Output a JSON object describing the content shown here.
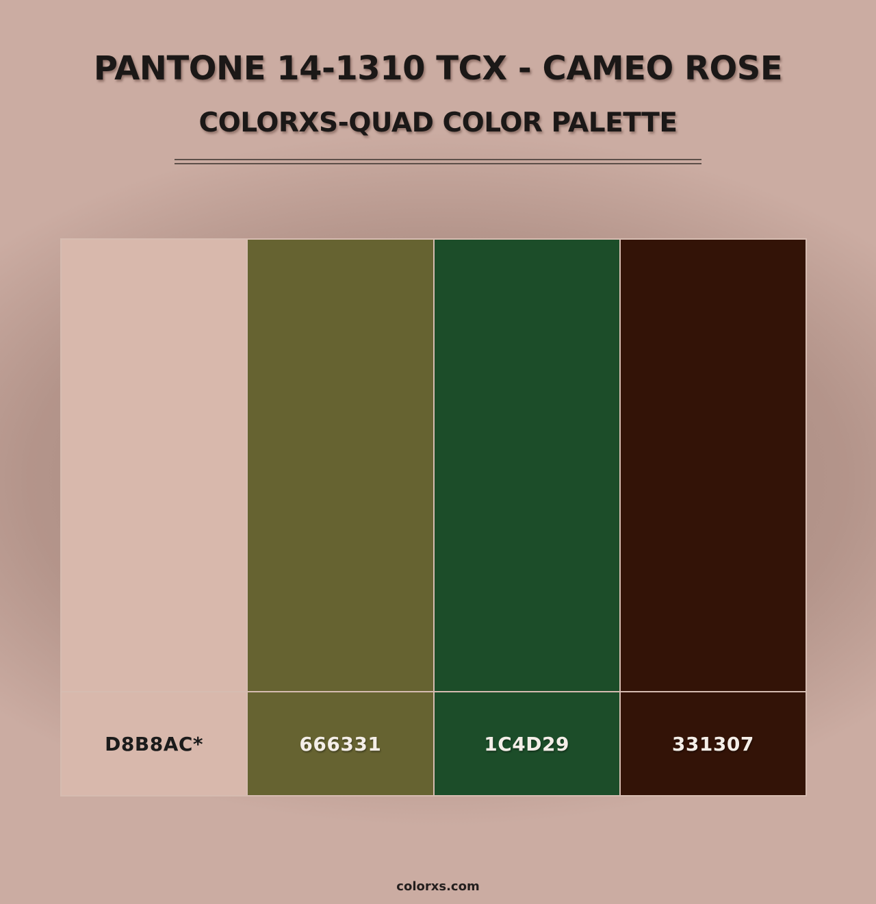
{
  "header": {
    "title": "PANTONE 14-1310 TCX - CAMEO ROSE",
    "subtitle": "COLORXS-QUAD COLOR PALETTE"
  },
  "palette": {
    "kind": "quad",
    "separator_color": "#d6bcb1",
    "swatches": [
      {
        "label": "D8B8AC*",
        "color": "#D8B8AC",
        "text_color": "#1b1b1b"
      },
      {
        "label": "666331",
        "color": "#666331",
        "text_color": "#f4eee8"
      },
      {
        "label": "1C4D29",
        "color": "#1C4D29",
        "text_color": "#f4eee8"
      },
      {
        "label": "331307",
        "color": "#331307",
        "text_color": "#f4eee8"
      }
    ]
  },
  "footer": {
    "site": "colorxs.com"
  },
  "theme": {
    "background": "#cbaca2",
    "title_color": "#1b1817",
    "rule_color": "#5d4f49"
  }
}
